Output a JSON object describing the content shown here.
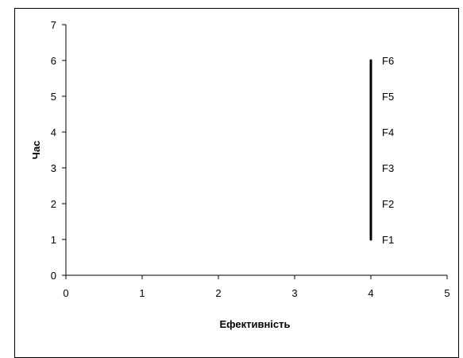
{
  "chart_data": {
    "type": "line",
    "title": "",
    "xlabel": "Ефективність",
    "ylabel": "Час",
    "xlim": [
      0,
      5
    ],
    "ylim": [
      0,
      7
    ],
    "x_ticks": [
      "0",
      "1",
      "2",
      "3",
      "4",
      "5"
    ],
    "y_ticks": [
      "0",
      "1",
      "2",
      "3",
      "4",
      "5",
      "6",
      "7"
    ],
    "grid": false,
    "legend": "none",
    "series": [
      {
        "color": "#000000",
        "points": [
          {
            "x": 4,
            "y": 1,
            "label": "F1"
          },
          {
            "x": 4,
            "y": 2,
            "label": "F2"
          },
          {
            "x": 4,
            "y": 3,
            "label": "F3"
          },
          {
            "x": 4,
            "y": 4,
            "label": "F4"
          },
          {
            "x": 4,
            "y": 5,
            "label": "F5"
          },
          {
            "x": 4,
            "y": 6,
            "label": "F6"
          }
        ]
      }
    ]
  }
}
